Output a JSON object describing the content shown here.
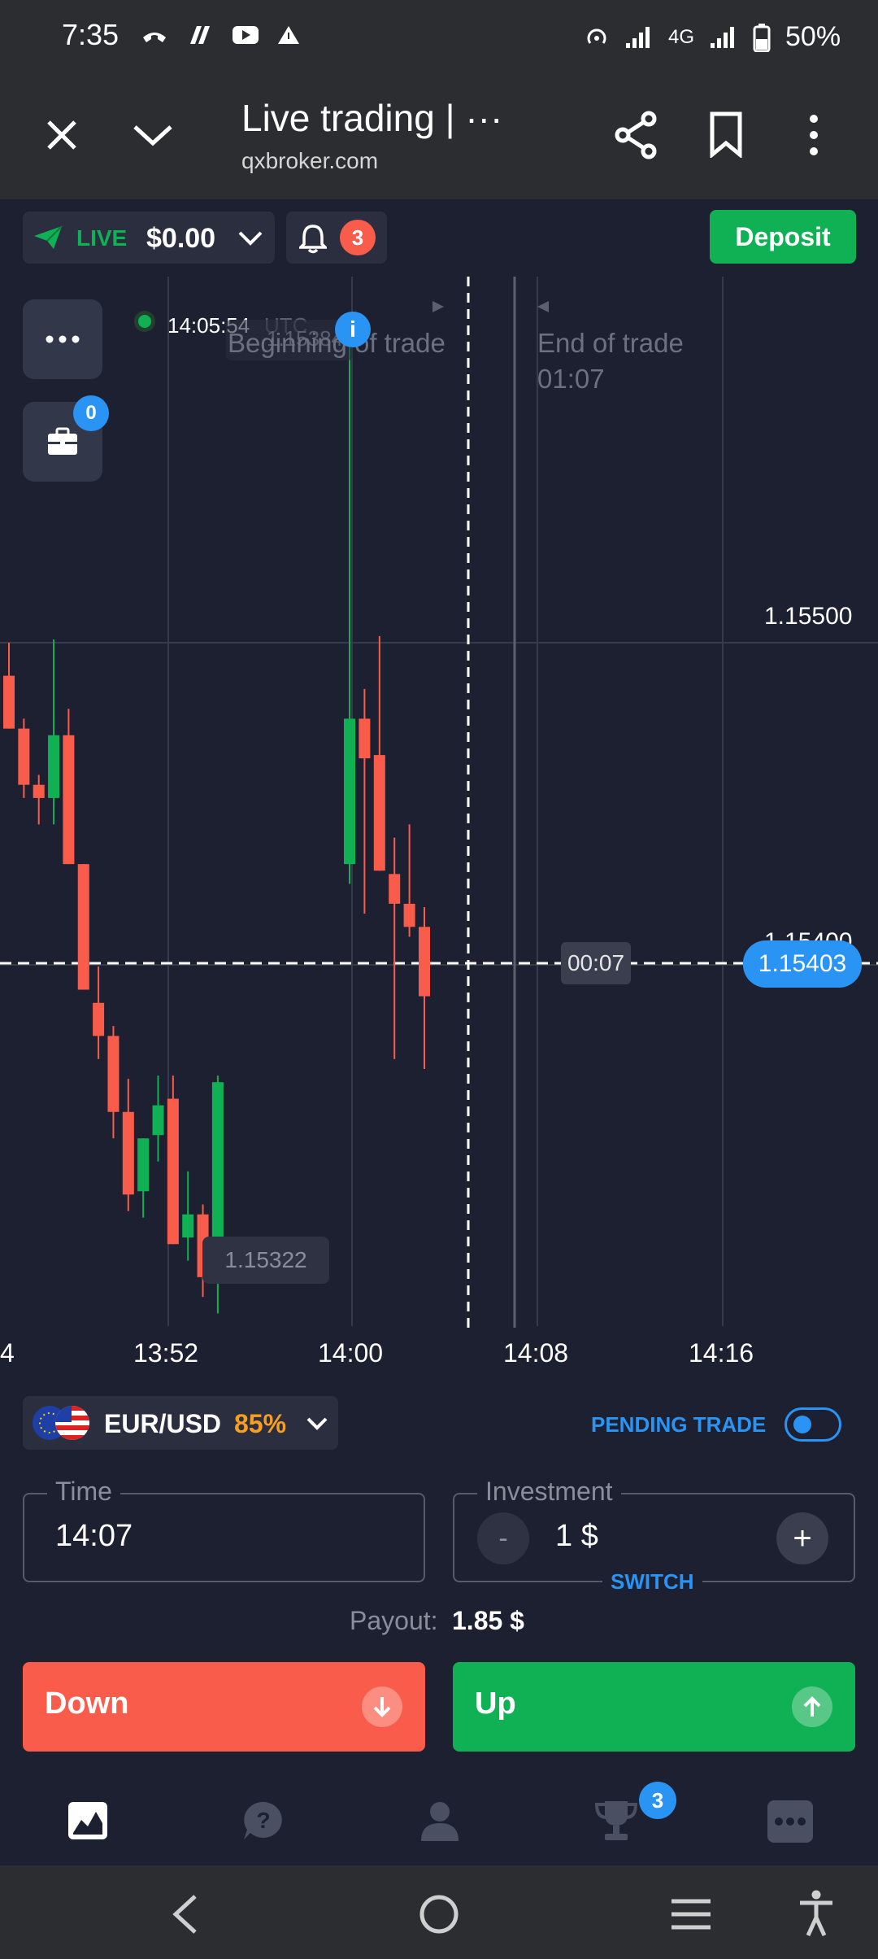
{
  "status": {
    "time": "7:35",
    "network": "4G",
    "battery": "50%"
  },
  "browser": {
    "title": "Live trading | ···",
    "url": "qxbroker.com"
  },
  "account": {
    "mode": "LIVE",
    "balance": "$0.00",
    "notifications": "3",
    "deposit_label": "Deposit",
    "portfolio_count": "0"
  },
  "chart_data": {
    "type": "candlestick",
    "clock": "14:05:54",
    "clock_zone": "UTC",
    "ghost_price": "1.15384",
    "beginning_label": "Beginning of trade",
    "end_label": "End of trade",
    "end_timer": "01:07",
    "x_ticks": [
      "4",
      "13:52",
      "14:00",
      "14:08",
      "14:16"
    ],
    "y_labels": [
      "1.15500",
      "1.15400"
    ],
    "current_price": "1.15403",
    "timer": "00:07",
    "low_price": "1.15322",
    "candles": [
      {
        "dir": "down",
        "open": 1.1549,
        "close": 1.15474,
        "high": 1.155,
        "low": 1.15474
      },
      {
        "dir": "down",
        "open": 1.15474,
        "close": 1.15457,
        "high": 1.15477,
        "low": 1.15453
      },
      {
        "dir": "down",
        "open": 1.15457,
        "close": 1.15453,
        "high": 1.1546,
        "low": 1.15445
      },
      {
        "dir": "up",
        "open": 1.15453,
        "close": 1.15472,
        "high": 1.15501,
        "low": 1.15445
      },
      {
        "dir": "down",
        "open": 1.15472,
        "close": 1.15433,
        "high": 1.1548,
        "low": 1.15433
      },
      {
        "dir": "down",
        "open": 1.15433,
        "close": 1.15395,
        "high": 1.15433,
        "low": 1.15395
      },
      {
        "dir": "down",
        "open": 1.15391,
        "close": 1.15381,
        "high": 1.15402,
        "low": 1.15374
      },
      {
        "dir": "down",
        "open": 1.15381,
        "close": 1.15358,
        "high": 1.15384,
        "low": 1.1535
      },
      {
        "dir": "down",
        "open": 1.15358,
        "close": 1.15333,
        "high": 1.15368,
        "low": 1.15328
      },
      {
        "dir": "up",
        "open": 1.15334,
        "close": 1.1535,
        "high": 1.1535,
        "low": 1.15326
      },
      {
        "dir": "up",
        "open": 1.15351,
        "close": 1.1536,
        "high": 1.15369,
        "low": 1.15343
      },
      {
        "dir": "down",
        "open": 1.15362,
        "close": 1.15318,
        "high": 1.15369,
        "low": 1.15318
      },
      {
        "dir": "up",
        "open": 1.1532,
        "close": 1.15327,
        "high": 1.1534,
        "low": 1.15313
      },
      {
        "dir": "down",
        "open": 1.15327,
        "close": 1.15308,
        "high": 1.1533,
        "low": 1.15302
      },
      {
        "dir": "up",
        "open": 1.15309,
        "close": 1.15367,
        "high": 1.15369,
        "low": 1.15297
      },
      {
        "dir": "up",
        "open": 1.15433,
        "close": 1.15477,
        "high": 1.15593,
        "low": 1.15427
      },
      {
        "dir": "down",
        "open": 1.15477,
        "close": 1.15465,
        "high": 1.15486,
        "low": 1.15418
      },
      {
        "dir": "down",
        "open": 1.15466,
        "close": 1.15431,
        "high": 1.15502,
        "low": 1.15431
      },
      {
        "dir": "down",
        "open": 1.1543,
        "close": 1.15421,
        "high": 1.15441,
        "low": 1.15374
      },
      {
        "dir": "down",
        "open": 1.15421,
        "close": 1.15414,
        "high": 1.15445,
        "low": 1.15411
      },
      {
        "dir": "down",
        "open": 1.15414,
        "close": 1.15393,
        "high": 1.1542,
        "low": 1.15371
      }
    ]
  },
  "asset": {
    "pair": "EUR/USD",
    "payout_pct": "85%",
    "pending_label": "PENDING TRADE"
  },
  "form": {
    "time_label": "Time",
    "time_value": "14:07",
    "investment_label": "Investment",
    "minus": "-",
    "investment_value": "1 $",
    "plus": "+",
    "switch_label": "SWITCH",
    "payout_label": "Payout:",
    "payout_value": "1.85 $"
  },
  "actions": {
    "down_label": "Down",
    "up_label": "Up"
  },
  "tabs": {
    "trophy_badge": "3"
  },
  "colors": {
    "up": "#10b154",
    "down": "#fa5c4b",
    "accent": "#2a94f4"
  }
}
